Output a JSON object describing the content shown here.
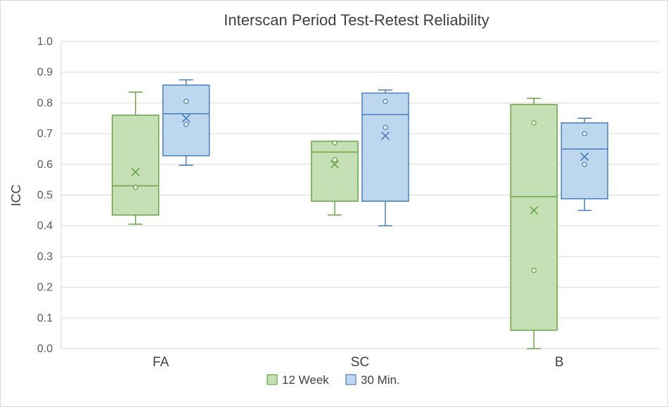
{
  "chart_data": {
    "type": "boxplot",
    "title": "Interscan Period Test-Retest Reliability",
    "xlabel": "",
    "ylabel": "ICC",
    "ylim": [
      0.0,
      1.0
    ],
    "yticks": [
      "0.0",
      "0.1",
      "0.2",
      "0.3",
      "0.4",
      "0.5",
      "0.6",
      "0.7",
      "0.8",
      "0.9",
      "1.0"
    ],
    "categories": [
      "FA",
      "SC",
      "B"
    ],
    "legend_position": "bottom",
    "series": [
      {
        "name": "12 Week",
        "fill": "#c5e0b4",
        "stroke": "#6aa344",
        "boxes": [
          {
            "category": "FA",
            "min": 0.405,
            "q1": 0.435,
            "median": 0.53,
            "q3": 0.76,
            "max": 0.835,
            "mean": 0.575,
            "points": [
              0.525
            ]
          },
          {
            "category": "SC",
            "min": 0.435,
            "q1": 0.48,
            "median": 0.64,
            "q3": 0.675,
            "max": 0.675,
            "mean": 0.6,
            "points": [
              0.67,
              0.615
            ]
          },
          {
            "category": "B",
            "min": 0.0,
            "q1": 0.06,
            "median": 0.495,
            "q3": 0.795,
            "max": 0.815,
            "mean": 0.45,
            "points": [
              0.735,
              0.255
            ]
          }
        ]
      },
      {
        "name": "30 Min.",
        "fill": "#bdd7ee",
        "stroke": "#4a7ebb",
        "boxes": [
          {
            "category": "FA",
            "min": 0.597,
            "q1": 0.628,
            "median": 0.765,
            "q3": 0.858,
            "max": 0.875,
            "mean": 0.75,
            "points": [
              0.805,
              0.73
            ]
          },
          {
            "category": "SC",
            "min": 0.4,
            "q1": 0.48,
            "median": 0.762,
            "q3": 0.832,
            "max": 0.842,
            "mean": 0.693,
            "points": [
              0.805,
              0.72
            ]
          },
          {
            "category": "B",
            "min": 0.45,
            "q1": 0.488,
            "median": 0.65,
            "q3": 0.735,
            "max": 0.75,
            "mean": 0.625,
            "points": [
              0.7,
              0.6
            ]
          }
        ]
      }
    ]
  }
}
